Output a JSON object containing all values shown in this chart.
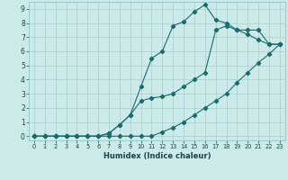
{
  "xlabel": "Humidex (Indice chaleur)",
  "bg_color": "#cceaea",
  "grid_color": "#aacccc",
  "line_color": "#1a6b6b",
  "xlim": [
    -0.5,
    23.5
  ],
  "ylim": [
    -0.3,
    9.5
  ],
  "xticks": [
    0,
    1,
    2,
    3,
    4,
    5,
    6,
    7,
    8,
    9,
    10,
    11,
    12,
    13,
    14,
    15,
    16,
    17,
    18,
    19,
    20,
    21,
    22,
    23
  ],
  "yticks": [
    0,
    1,
    2,
    3,
    4,
    5,
    6,
    7,
    8,
    9
  ],
  "line1_x": [
    0,
    1,
    2,
    3,
    4,
    5,
    6,
    7,
    8,
    9,
    10,
    11,
    12,
    13,
    14,
    15,
    16,
    17,
    18,
    19,
    20,
    21,
    22,
    23
  ],
  "line1_y": [
    0,
    0,
    0,
    0,
    0,
    0,
    0,
    0.2,
    0.8,
    1.5,
    3.5,
    5.5,
    6.0,
    7.8,
    8.1,
    8.8,
    9.3,
    8.2,
    8.0,
    7.5,
    7.2,
    6.8,
    6.5,
    6.5
  ],
  "line2_x": [
    0,
    1,
    2,
    3,
    4,
    5,
    6,
    7,
    8,
    9,
    10,
    11,
    12,
    13,
    14,
    15,
    16,
    17,
    18,
    19,
    20,
    21,
    22,
    23
  ],
  "line2_y": [
    0,
    0,
    0,
    0,
    0,
    0,
    0,
    0.2,
    0.8,
    1.5,
    2.5,
    2.7,
    2.8,
    3.0,
    3.5,
    4.0,
    4.5,
    7.5,
    7.8,
    7.5,
    7.5,
    7.5,
    6.5,
    6.5
  ],
  "line3_x": [
    0,
    1,
    2,
    3,
    4,
    5,
    6,
    7,
    8,
    9,
    10,
    11,
    12,
    13,
    14,
    15,
    16,
    17,
    18,
    19,
    20,
    21,
    22,
    23
  ],
  "line3_y": [
    0,
    0,
    0,
    0,
    0,
    0,
    0,
    0,
    0,
    0,
    0,
    0,
    0.3,
    0.6,
    1.0,
    1.5,
    2.0,
    2.5,
    3.0,
    3.8,
    4.5,
    5.2,
    5.8,
    6.5
  ]
}
